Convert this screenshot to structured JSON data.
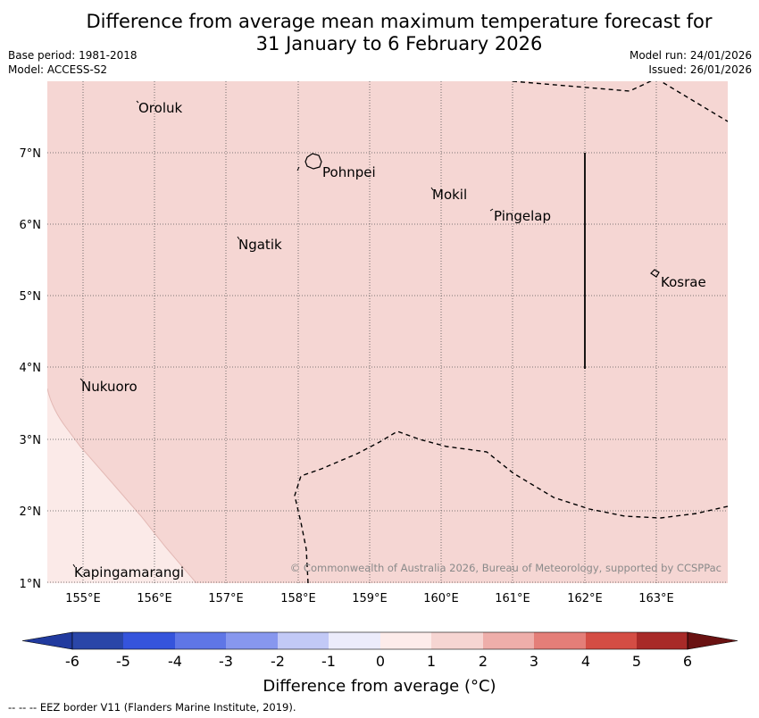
{
  "title_line1": "Difference from average mean maximum temperature forecast for",
  "title_line2": "31 January to 6 February 2026",
  "base_period": "Base period: 1981-2018",
  "model": "Model: ACCESS-S2",
  "model_run": "Model run: 24/01/2026",
  "issued": "Issued: 26/01/2026",
  "places": {
    "oroluk": "Oroluk",
    "pohnpei": "Pohnpei",
    "mokil": "Mokil",
    "pingelap": "Pingelap",
    "ngatik": "Ngatik",
    "kosrae": "Kosrae",
    "nukuoro": "Nukuoro",
    "kapingamarangi": "Kapingamarangi"
  },
  "lat_labels": [
    "7°N",
    "6°N",
    "5°N",
    "4°N",
    "3°N",
    "2°N",
    "1°N"
  ],
  "lon_labels": [
    "155°E",
    "156°E",
    "157°E",
    "158°E",
    "159°E",
    "160°E",
    "161°E",
    "162°E",
    "163°E"
  ],
  "copyright": "© Commonwealth of Australia 2026, Bureau of Meteorology, supported by CCSPPac",
  "colorbar": {
    "ticks": [
      "-6",
      "-5",
      "-4",
      "-3",
      "-2",
      "-1",
      "0",
      "1",
      "2",
      "3",
      "4",
      "5",
      "6"
    ],
    "label": "Difference from average (°C)",
    "colors": [
      "#213a9e",
      "#2a46a8",
      "#3554dc",
      "#5f76e6",
      "#8797ee",
      "#c2c9f6",
      "#ececfb",
      "#fdecea",
      "#f6d5d2",
      "#eeaeaa",
      "#e47e78",
      "#d44d44",
      "#a82a28",
      "#6a1212"
    ]
  },
  "map_fill": {
    "main": "#f5d6d3",
    "light": "#fbeae8"
  },
  "footnote": "--  --  -- EEZ border V11 (Flanders Marine Institute, 2019)."
}
